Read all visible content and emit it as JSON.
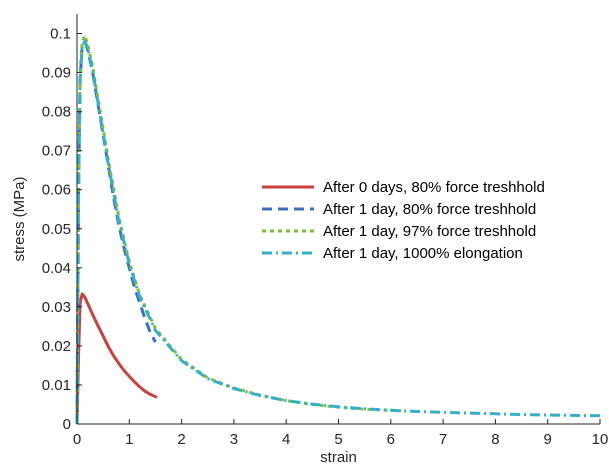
{
  "chart_data": {
    "type": "line",
    "title": "",
    "xlabel": "strain",
    "ylabel": "stress (MPa)",
    "xlim": [
      0,
      10
    ],
    "ylim": [
      0,
      0.105
    ],
    "xticks": [
      "0",
      "1",
      "2",
      "3",
      "4",
      "5",
      "6",
      "7",
      "8",
      "9",
      "10"
    ],
    "yticks": [
      "0",
      "0.01",
      "0.02",
      "0.03",
      "0.04",
      "0.05",
      "0.06",
      "0.07",
      "0.08",
      "0.09",
      "0.1"
    ],
    "legend_position": "center-right",
    "series": [
      {
        "name": "After 0 days, 80% force treshhold",
        "color": "#c8413f",
        "style": "solid",
        "x": [
          0.0,
          0.03,
          0.06,
          0.1,
          0.15,
          0.2,
          0.3,
          0.4,
          0.5,
          0.6,
          0.7,
          0.8,
          0.9,
          1.0,
          1.1,
          1.2,
          1.3,
          1.4,
          1.53
        ],
        "y": [
          0.0,
          0.018,
          0.031,
          0.0333,
          0.0325,
          0.031,
          0.028,
          0.0252,
          0.0225,
          0.0198,
          0.0175,
          0.0155,
          0.0137,
          0.0122,
          0.0108,
          0.0095,
          0.0084,
          0.0076,
          0.0068
        ]
      },
      {
        "name": "After 1 day, 80% force treshhold",
        "color": "#3a6fc4",
        "style": "dashed",
        "x": [
          0.0,
          0.03,
          0.06,
          0.1,
          0.15,
          0.2,
          0.3,
          0.4,
          0.5,
          0.6,
          0.7,
          0.8,
          0.9,
          1.0,
          1.1,
          1.2,
          1.3,
          1.4,
          1.5
        ],
        "y": [
          0.0,
          0.06,
          0.088,
          0.097,
          0.098,
          0.096,
          0.09,
          0.082,
          0.074,
          0.066,
          0.058,
          0.051,
          0.045,
          0.04,
          0.035,
          0.031,
          0.027,
          0.0235,
          0.021
        ]
      },
      {
        "name": "After 1 day, 97% force treshhold",
        "color": "#7cc242",
        "style": "dotted",
        "x": [
          0.0,
          0.03,
          0.06,
          0.1,
          0.15,
          0.2,
          0.3,
          0.4,
          0.5,
          0.6,
          0.8,
          1.0,
          1.2,
          1.5,
          2.0,
          2.5,
          3.0,
          3.5,
          4.0,
          4.5,
          5.0,
          5.5,
          6.2
        ],
        "y": [
          0.0,
          0.062,
          0.09,
          0.098,
          0.0995,
          0.0975,
          0.0915,
          0.0835,
          0.0755,
          0.0675,
          0.053,
          0.0415,
          0.033,
          0.0245,
          0.0165,
          0.0118,
          0.0092,
          0.0074,
          0.006,
          0.005,
          0.0043,
          0.0038,
          0.0034
        ]
      },
      {
        "name": "After 1 day, 1000% elongation",
        "color": "#36b0c9",
        "style": "dashdot",
        "x": [
          0.0,
          0.03,
          0.06,
          0.1,
          0.15,
          0.2,
          0.3,
          0.4,
          0.5,
          0.6,
          0.8,
          1.0,
          1.2,
          1.5,
          2.0,
          2.5,
          3.0,
          3.5,
          4.0,
          4.5,
          5.0,
          5.5,
          6.0,
          6.5,
          7.0,
          7.5,
          8.0,
          8.5,
          9.0,
          9.5,
          10.0
        ],
        "y": [
          0.0,
          0.06,
          0.088,
          0.0965,
          0.098,
          0.0965,
          0.0905,
          0.0825,
          0.0745,
          0.0665,
          0.052,
          0.041,
          0.0325,
          0.024,
          0.0162,
          0.0116,
          0.0091,
          0.0073,
          0.006,
          0.0051,
          0.0044,
          0.0039,
          0.0035,
          0.0032,
          0.003,
          0.0028,
          0.0026,
          0.0024,
          0.0023,
          0.0022,
          0.0021
        ]
      }
    ]
  }
}
